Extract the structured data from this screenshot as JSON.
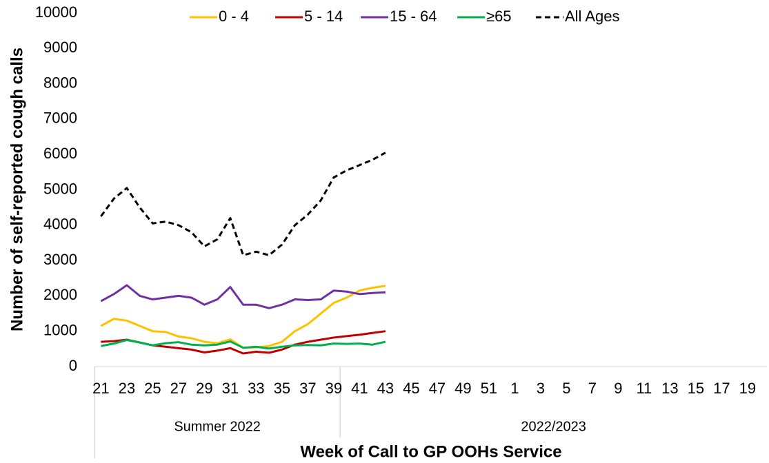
{
  "chart_data": {
    "type": "line",
    "y_label": "Number of self-reported cough calls",
    "x_label": "Week of Call to GP OOHs Service",
    "x_groups": [
      "Summer 2022",
      "2022/2023"
    ],
    "categories": [
      "21",
      null,
      "23",
      null,
      "25",
      null,
      "27",
      null,
      "29",
      null,
      "31",
      null,
      "33",
      null,
      "35",
      null,
      "37",
      null,
      "39",
      null,
      "41",
      null,
      "43",
      null,
      "45",
      null,
      "47",
      null,
      "49",
      null,
      "51",
      null,
      "1",
      null,
      "3",
      null,
      "5",
      null,
      "7",
      null,
      "9",
      null,
      "11",
      null,
      "13",
      null,
      "15",
      null,
      "17",
      null,
      "19",
      null
    ],
    "ylim": [
      0,
      10000
    ],
    "yticks": [
      0,
      1000,
      2000,
      3000,
      4000,
      5000,
      6000,
      7000,
      8000,
      9000,
      10000
    ],
    "legend": "top",
    "series": [
      {
        "name": "0 - 4",
        "color": "#FFC000",
        "values": [
          1150,
          1350,
          1300,
          1150,
          1000,
          980,
          850,
          800,
          700,
          660,
          770,
          530,
          540,
          580,
          700,
          1000,
          1200,
          1500,
          1800,
          1950,
          2150,
          2230,
          2280,
          null,
          null,
          null,
          null,
          null,
          null,
          null,
          null,
          null,
          null,
          null,
          null,
          null,
          null,
          null,
          null,
          null,
          null,
          null,
          null,
          null,
          null,
          null,
          null,
          null,
          null,
          null,
          null,
          null
        ]
      },
      {
        "name": "5 - 14",
        "color": "#C00000",
        "values": [
          700,
          720,
          760,
          680,
          600,
          560,
          520,
          480,
          400,
          450,
          520,
          370,
          420,
          390,
          480,
          620,
          700,
          760,
          820,
          860,
          900,
          950,
          1000,
          null,
          null,
          null,
          null,
          null,
          null,
          null,
          null,
          null,
          null,
          null,
          null,
          null,
          null,
          null,
          null,
          null,
          null,
          null,
          null,
          null,
          null,
          null,
          null,
          null,
          null,
          null,
          null,
          null
        ]
      },
      {
        "name": "15 - 64",
        "color": "#7030A0",
        "values": [
          1850,
          2050,
          2300,
          2000,
          1900,
          1950,
          2000,
          1950,
          1750,
          1900,
          2250,
          1750,
          1750,
          1650,
          1750,
          1900,
          1880,
          1900,
          2150,
          2120,
          2050,
          2080,
          2100,
          null,
          null,
          null,
          null,
          null,
          null,
          null,
          null,
          null,
          null,
          null,
          null,
          null,
          null,
          null,
          null,
          null,
          null,
          null,
          null,
          null,
          null,
          null,
          null,
          null,
          null,
          null,
          null,
          null
        ]
      },
      {
        "name": "≥65",
        "color": "#00B050",
        "values": [
          580,
          650,
          750,
          680,
          600,
          660,
          690,
          620,
          600,
          620,
          710,
          530,
          560,
          510,
          560,
          600,
          610,
          600,
          650,
          640,
          650,
          620,
          700,
          null,
          null,
          null,
          null,
          null,
          null,
          null,
          null,
          null,
          null,
          null,
          null,
          null,
          null,
          null,
          null,
          null,
          null,
          null,
          null,
          null,
          null,
          null,
          null,
          null,
          null,
          null,
          null,
          null
        ]
      },
      {
        "name": "All Ages",
        "color": "#000000",
        "dashed": true,
        "values": [
          4250,
          4750,
          5050,
          4500,
          4050,
          4100,
          4000,
          3800,
          3400,
          3600,
          4200,
          3150,
          3250,
          3150,
          3450,
          4000,
          4300,
          4700,
          5350,
          5550,
          5700,
          5850,
          6050,
          null,
          null,
          null,
          null,
          null,
          null,
          null,
          null,
          null,
          null,
          null,
          null,
          null,
          null,
          null,
          null,
          null,
          null,
          null,
          null,
          null,
          null,
          null,
          null,
          null,
          null,
          null,
          null,
          null
        ]
      }
    ]
  }
}
